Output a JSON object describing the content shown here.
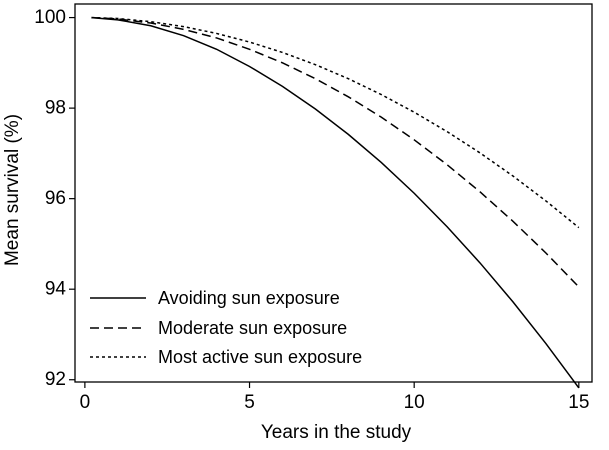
{
  "chart_data": {
    "type": "line",
    "title": "",
    "xlabel": "Years in the study",
    "ylabel": "Mean survival (%)",
    "xlim": [
      -0.3,
      15.4
    ],
    "ylim": [
      91.95,
      100.3
    ],
    "x_ticks": [
      0,
      5,
      10,
      15
    ],
    "y_ticks": [
      92,
      94,
      96,
      98,
      100
    ],
    "grid": false,
    "legend_position": "bottom-left",
    "series": [
      {
        "name": "Avoiding sun exposure",
        "style": "solid",
        "color": "#000000",
        "x": [
          0.2,
          1,
          2,
          3,
          4,
          5,
          6,
          7,
          8,
          9,
          10,
          11,
          12,
          13,
          14,
          15
        ],
        "values": [
          100,
          99.95,
          99.82,
          99.6,
          99.3,
          98.92,
          98.48,
          97.98,
          97.42,
          96.8,
          96.12,
          95.38,
          94.58,
          93.72,
          92.8,
          91.82
        ]
      },
      {
        "name": "Moderate sun exposure",
        "style": "dashed",
        "color": "#000000",
        "x": [
          0.2,
          1,
          2,
          3,
          4,
          5,
          6,
          7,
          8,
          9,
          10,
          11,
          12,
          13,
          14,
          15
        ],
        "values": [
          100,
          99.97,
          99.88,
          99.74,
          99.55,
          99.3,
          99.0,
          98.65,
          98.25,
          97.8,
          97.3,
          96.75,
          96.15,
          95.5,
          94.8,
          94.05
        ]
      },
      {
        "name": "Most active sun exposure",
        "style": "dotted",
        "color": "#000000",
        "x": [
          0.2,
          1,
          2,
          3,
          4,
          5,
          6,
          7,
          8,
          9,
          10,
          11,
          12,
          13,
          14,
          15
        ],
        "values": [
          100,
          99.98,
          99.91,
          99.8,
          99.65,
          99.46,
          99.23,
          98.96,
          98.65,
          98.3,
          97.91,
          97.48,
          97.01,
          96.5,
          95.95,
          95.36
        ]
      }
    ]
  }
}
